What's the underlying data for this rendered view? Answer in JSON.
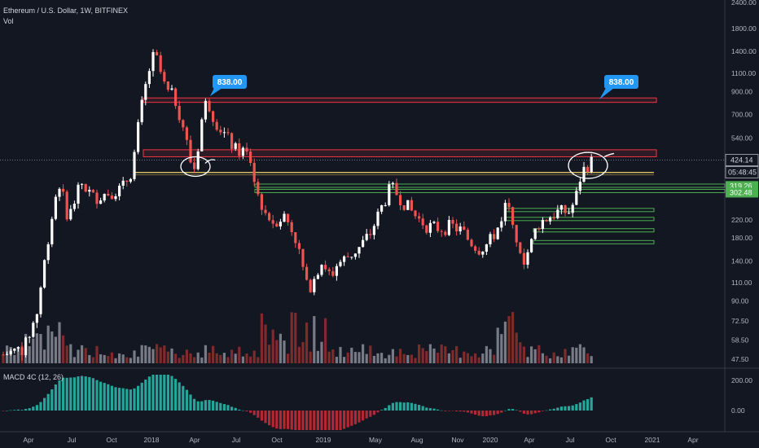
{
  "header": {
    "symbol_line": "Ethereum / U.S. Dollar, 1W, BITFINEX",
    "volume_label": "Vol",
    "macd_label": "MACD 4C (12, 26)"
  },
  "chart_data": {
    "type": "candlestick",
    "price_axis": {
      "scale": "log",
      "ticks": [
        "2400.00",
        "1800.00",
        "1400.00",
        "1100.00",
        "900.00",
        "700.00",
        "540.00",
        "420.00",
        "220.00",
        "180.00",
        "140.00",
        "110.00",
        "90.00",
        "72.50",
        "58.50",
        "47.50"
      ]
    },
    "macd_axis": {
      "ticks": [
        "200.00",
        "0.00"
      ]
    },
    "x_ticks": [
      "Apr",
      "Jul",
      "Oct",
      "2018",
      "Apr",
      "Jul",
      "Oct",
      "2019",
      "May",
      "Aug",
      "Nov",
      "2020",
      "Apr",
      "Jul",
      "Oct",
      "2021",
      "Apr"
    ],
    "last_price": "424.14",
    "countdown": "05:48:45",
    "level_tags": [
      {
        "label": "319.26",
        "color": "#4caf50"
      },
      {
        "label": "302.48",
        "color": "#4caf50"
      }
    ],
    "callouts": [
      "838.00",
      "838.00"
    ],
    "resistance_zones": [
      {
        "low": 800,
        "high": 840,
        "color": "#f23645"
      },
      {
        "low": 440,
        "high": 475,
        "color": "#f23645"
      }
    ],
    "support_line": {
      "value": 370,
      "color": "#f5d76e"
    },
    "support_zones": [
      {
        "value": 320,
        "color": "#4caf50"
      },
      {
        "value": 302,
        "color": "#4caf50"
      },
      {
        "value": 245,
        "color": "#4caf50"
      },
      {
        "value": 222,
        "color": "#4caf50"
      },
      {
        "value": 196,
        "color": "#4caf50"
      },
      {
        "value": 172,
        "color": "#4caf50"
      }
    ],
    "colors": {
      "up": "#ffffff",
      "down": "#ef5350",
      "vol_up": "#787b86",
      "vol_down": "#7f2b2b",
      "macd_up": "#26a69a",
      "macd_down": "#b22833"
    }
  }
}
